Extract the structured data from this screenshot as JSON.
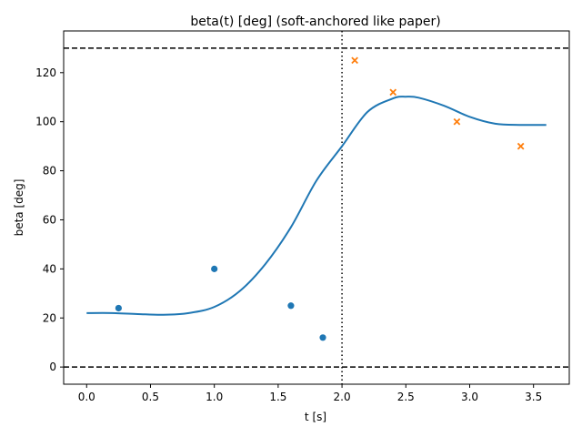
{
  "chart_data": {
    "type": "line",
    "title": "beta(t) [deg]  (soft-anchored like paper)",
    "xlabel": "t [s]",
    "ylabel": "beta [deg]",
    "xlim": [
      -0.18,
      3.78
    ],
    "ylim": [
      -7,
      137
    ],
    "xticks": [
      0.0,
      0.5,
      1.0,
      1.5,
      2.0,
      2.5,
      3.0,
      3.5
    ],
    "xtick_labels": [
      "0.0",
      "0.5",
      "1.0",
      "1.5",
      "2.0",
      "2.5",
      "3.0",
      "3.5"
    ],
    "yticks": [
      0,
      20,
      40,
      60,
      80,
      100,
      120
    ],
    "ytick_labels": [
      "0",
      "20",
      "40",
      "60",
      "80",
      "100",
      "120"
    ],
    "grid": false,
    "series": [
      {
        "kind": "line",
        "color": "#1f77b4",
        "x": [
          0.0,
          0.2,
          0.4,
          0.6,
          0.8,
          1.0,
          1.2,
          1.4,
          1.6,
          1.8,
          2.0,
          2.2,
          2.4,
          2.5,
          2.6,
          2.8,
          3.0,
          3.2,
          3.4,
          3.6
        ],
        "y": [
          22,
          22,
          21.6,
          21.3,
          22,
          24.5,
          31,
          42,
          57,
          76,
          90,
          104,
          109.5,
          110.2,
          109.8,
          106.5,
          102,
          99.2,
          98.7,
          98.7
        ]
      },
      {
        "kind": "scatter",
        "marker": "circle",
        "color": "#1f77b4",
        "x": [
          0.25,
          1.0,
          1.6,
          1.85
        ],
        "y": [
          24,
          40,
          25,
          12
        ]
      },
      {
        "kind": "scatter",
        "marker": "x",
        "color": "#ff7f0e",
        "x": [
          2.1,
          2.4,
          2.9,
          3.4
        ],
        "y": [
          125,
          112,
          100,
          90
        ]
      }
    ],
    "hlines": [
      {
        "y": 0,
        "style": "dashed",
        "color": "#000000"
      },
      {
        "y": 130,
        "style": "dashed",
        "color": "#000000"
      }
    ],
    "vlines": [
      {
        "x": 2.0,
        "style": "dotted",
        "color": "#000000"
      }
    ]
  }
}
